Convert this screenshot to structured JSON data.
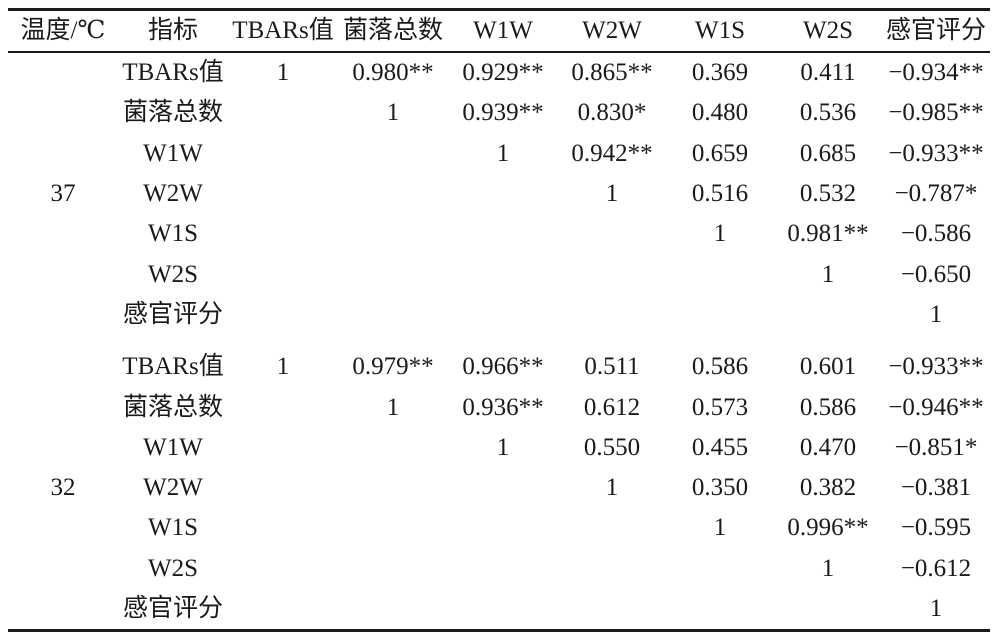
{
  "table": {
    "headers": [
      "温度/℃",
      "指标",
      "TBARs值",
      "菌落总数",
      "W1W",
      "W2W",
      "W1S",
      "W2S",
      "感官评分"
    ],
    "groups": [
      {
        "temperature": "37",
        "rows": [
          {
            "indicator": "TBARs值",
            "cells": [
              "1",
              "0.980**",
              "0.929**",
              "0.865**",
              "0.369",
              "0.411",
              "−0.934**"
            ]
          },
          {
            "indicator": "菌落总数",
            "cells": [
              "",
              "1",
              "0.939**",
              "0.830*",
              "0.480",
              "0.536",
              "−0.985**"
            ]
          },
          {
            "indicator": "W1W",
            "cells": [
              "",
              "",
              "1",
              "0.942**",
              "0.659",
              "0.685",
              "−0.933**"
            ]
          },
          {
            "indicator": "W2W",
            "cells": [
              "",
              "",
              "",
              "1",
              "0.516",
              "0.532",
              "−0.787*"
            ]
          },
          {
            "indicator": "W1S",
            "cells": [
              "",
              "",
              "",
              "",
              "1",
              "0.981**",
              "−0.586"
            ]
          },
          {
            "indicator": "W2S",
            "cells": [
              "",
              "",
              "",
              "",
              "",
              "1",
              "−0.650"
            ]
          },
          {
            "indicator": "感官评分",
            "cells": [
              "",
              "",
              "",
              "",
              "",
              "",
              "1"
            ]
          }
        ]
      },
      {
        "temperature": "32",
        "rows": [
          {
            "indicator": "TBARs值",
            "cells": [
              "1",
              "0.979**",
              "0.966**",
              "0.511",
              "0.586",
              "0.601",
              "−0.933**"
            ]
          },
          {
            "indicator": "菌落总数",
            "cells": [
              "",
              "1",
              "0.936**",
              "0.612",
              "0.573",
              "0.586",
              "−0.946**"
            ]
          },
          {
            "indicator": "W1W",
            "cells": [
              "",
              "",
              "1",
              "0.550",
              "0.455",
              "0.470",
              "−0.851*"
            ]
          },
          {
            "indicator": "W2W",
            "cells": [
              "",
              "",
              "",
              "1",
              "0.350",
              "0.382",
              "−0.381"
            ]
          },
          {
            "indicator": "W1S",
            "cells": [
              "",
              "",
              "",
              "",
              "1",
              "0.996**",
              "−0.595"
            ]
          },
          {
            "indicator": "W2S",
            "cells": [
              "",
              "",
              "",
              "",
              "",
              "1",
              "−0.612"
            ]
          },
          {
            "indicator": "感官评分",
            "cells": [
              "",
              "",
              "",
              "",
              "",
              "",
              "1"
            ]
          }
        ]
      }
    ]
  }
}
